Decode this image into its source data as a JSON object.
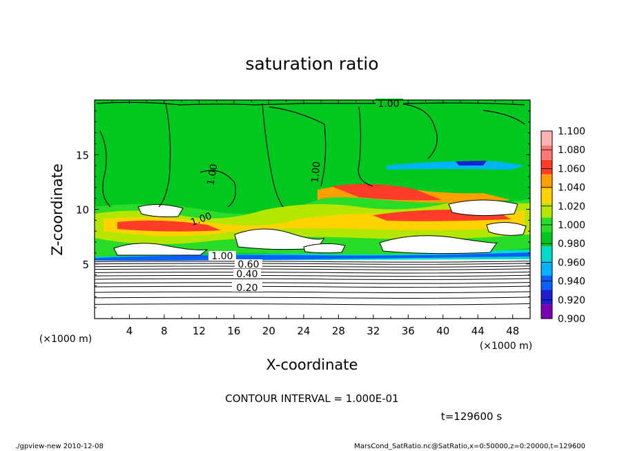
{
  "chart_data": {
    "type": "heatmap",
    "title": "saturation ratio",
    "xlabel": "X-coordinate",
    "ylabel": "Z-coordinate",
    "x_unit": "(×1000 m)",
    "z_unit": "(×1000 m)",
    "xlim": [
      0,
      50
    ],
    "ylim": [
      0,
      20
    ],
    "x_ticks": [
      4,
      8,
      12,
      16,
      20,
      24,
      28,
      32,
      36,
      40,
      44,
      48
    ],
    "y_ticks": [
      5,
      10,
      15
    ],
    "colorbar": {
      "levels": [
        "0.900",
        "0.920",
        "0.940",
        "0.960",
        "0.980",
        "1.000",
        "1.020",
        "1.040",
        "1.060",
        "1.080",
        "1.100"
      ],
      "colors": [
        "#7b00b4",
        "#1e1ed2",
        "#0a5fff",
        "#00b4ff",
        "#00dcc8",
        "#00c81e",
        "#28dc28",
        "#b4e600",
        "#ffd200",
        "#ffa000",
        "#ff3c28",
        "#ff7878",
        "#ffb4b4"
      ]
    },
    "contour_labels": [
      "1.00",
      "1.00",
      "1.00",
      "1.00",
      "1.00",
      "0.60",
      "0.40",
      "0.20"
    ],
    "lower_contours_z": [
      5.2,
      5.0,
      4.75,
      4.5,
      4.2,
      3.9,
      3.6,
      3.25,
      2.9,
      2.4,
      1.9,
      1.3
    ]
  },
  "annotations": {
    "contour_interval": "CONTOUR INTERVAL = 1.000E-01",
    "time": "t=129600 s",
    "footer_left": "./gpview-new  2010-12-08",
    "footer_right": "MarsCond_SatRatio.nc@SatRatio,x=0:50000,z=0:20000,t=129600"
  }
}
